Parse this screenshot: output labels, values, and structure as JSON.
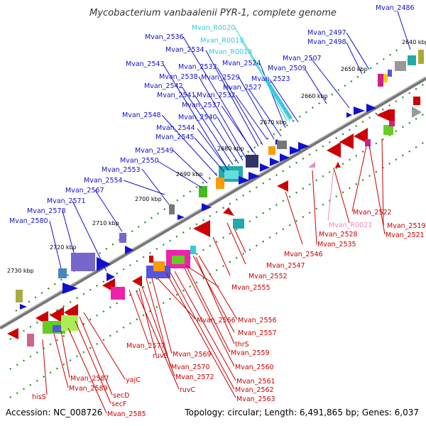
{
  "title": "Mycobacterium vanbaalenii PYR-1, complete genome",
  "footer": {
    "accession": "Accession: NC_008726",
    "summary": "Topology: circular; Length: 6,491,865 bp; Genes: 6,037"
  },
  "colors": {
    "forward": "#1111cc",
    "reverse": "#cc0000",
    "rna": "#33ccdd",
    "pseudo": "#ee88bb",
    "backbone": "#777777",
    "dots": "#228822"
  },
  "tick_labels": [
    "2640 kbp",
    "2650 kbp",
    "2660 kbp",
    "2670 kbp",
    "2680 kbp",
    "2690 kbp",
    "2700 kbp",
    "2710 kbp",
    "2720 kbp",
    "2730 kbp"
  ],
  "forward_labels": [
    "Mvan_2486",
    "Mvan_2497",
    "Mvan_2498",
    "Mvan_2507",
    "Mvan_2509",
    "Mvan_2523",
    "Mvan_2524",
    "Mvan_2527",
    "Mvan_2529",
    "Mvan_2532",
    "Mvan_2533",
    "Mvan_2534",
    "Mvan_2536",
    "Mvan_2537",
    "Mvan_2538",
    "Mvan_2540",
    "Mvan_2541",
    "Mvan_2542",
    "Mvan_2543",
    "Mvan_2544",
    "Mvan_2545",
    "Mvan_2548",
    "Mvan_2549",
    "Mvan_2550",
    "Mvan_2553",
    "Mvan_2554",
    "Mvan_2567",
    "Mvan_2571",
    "Mvan_2578",
    "Mvan_2580"
  ],
  "rna_labels": [
    "Mvan_R0020",
    "Mvan_R0019",
    "Mvan_R0018"
  ],
  "reverse_labels": [
    "Mvan_2522",
    "Mvan_2519",
    "Mvan_2521",
    "Mvan_2528",
    "Mvan_2535",
    "Mvan_2546",
    "Mvan_2547",
    "Mvan_2552",
    "Mvan_2555",
    "Mvan_2556",
    "Mvan_2557",
    "thrS",
    "Mvan_2559",
    "Mvan_2560",
    "Mvan_2561",
    "Mvan_2562",
    "Mvan_2563",
    "Mvan_2566",
    "Mvan_2569",
    "Mvan_2570",
    "Mvan_2572",
    "Mvan_2577",
    "ruvB",
    "ruvC",
    "yajC",
    "secD",
    "secF",
    "Mvan_2585",
    "Mvan_2587",
    "Mvan_2589",
    "hisS"
  ],
  "pseudo_labels": [
    "Mvan_R0021"
  ]
}
